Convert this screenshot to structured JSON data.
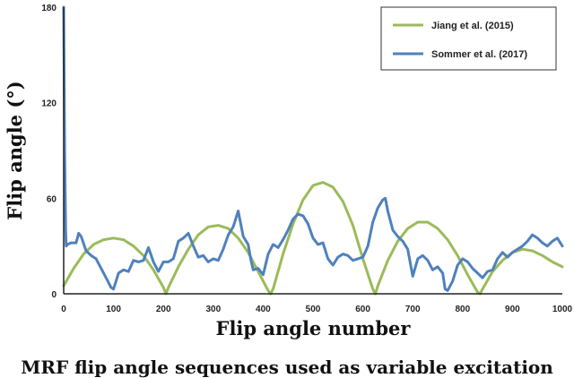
{
  "chart_data": {
    "type": "line",
    "xlabel": "Flip angle number",
    "ylabel": "Flip angle (°)",
    "xlim": [
      0,
      1000
    ],
    "ylim": [
      0,
      180
    ],
    "xticks": [
      0,
      100,
      200,
      300,
      400,
      500,
      600,
      700,
      800,
      900,
      1000
    ],
    "yticks": [
      0,
      60,
      120,
      180
    ],
    "grid": false,
    "legend_position": "top-right",
    "legend_box": true,
    "series": [
      {
        "name": "Jiang et al. (2015)",
        "color": "#9bbb59",
        "x": [
          0,
          20,
          40,
          60,
          80,
          100,
          120,
          140,
          160,
          180,
          200,
          205,
          210,
          230,
          250,
          270,
          290,
          310,
          330,
          350,
          370,
          390,
          410,
          415,
          420,
          440,
          460,
          480,
          500,
          520,
          540,
          560,
          580,
          600,
          620,
          625,
          630,
          650,
          670,
          690,
          710,
          730,
          750,
          770,
          790,
          810,
          830,
          835,
          840,
          860,
          880,
          900,
          920,
          940,
          960,
          980,
          1000
        ],
        "y": [
          5,
          16,
          25,
          31,
          34,
          35,
          34,
          30,
          24,
          15,
          4,
          0,
          4,
          17,
          28,
          37,
          42,
          43,
          41,
          35,
          26,
          14,
          2,
          0,
          3,
          25,
          44,
          59,
          68,
          70,
          67,
          58,
          43,
          22,
          3,
          0,
          5,
          21,
          33,
          41,
          45,
          45,
          41,
          34,
          24,
          12,
          1,
          0,
          3,
          14,
          21,
          26,
          28,
          27,
          24,
          20,
          17
        ]
      },
      {
        "name": "Sommer et al. (2017)",
        "color": "#4f81bd",
        "x": [
          0,
          2,
          4,
          5,
          8,
          15,
          25,
          30,
          35,
          45,
          55,
          65,
          75,
          85,
          95,
          100,
          110,
          120,
          130,
          140,
          150,
          160,
          170,
          180,
          190,
          200,
          210,
          220,
          230,
          240,
          250,
          260,
          270,
          280,
          290,
          300,
          310,
          320,
          330,
          340,
          350,
          360,
          370,
          375,
          380,
          390,
          400,
          410,
          420,
          430,
          440,
          450,
          460,
          470,
          480,
          490,
          500,
          510,
          520,
          530,
          540,
          550,
          560,
          570,
          580,
          590,
          600,
          610,
          620,
          630,
          640,
          645,
          650,
          660,
          670,
          680,
          690,
          700,
          710,
          720,
          730,
          740,
          750,
          760,
          765,
          770,
          780,
          790,
          800,
          810,
          820,
          830,
          840,
          850,
          860,
          870,
          880,
          890,
          900,
          910,
          920,
          930,
          940,
          950,
          960,
          970,
          980,
          990,
          1000
        ],
        "y": [
          180,
          90,
          40,
          30,
          31,
          32,
          32,
          38,
          36,
          27,
          24,
          22,
          16,
          10,
          4,
          3,
          13,
          15,
          14,
          21,
          20,
          21,
          29,
          20,
          14,
          20,
          20,
          22,
          33,
          35,
          38,
          30,
          23,
          24,
          20,
          22,
          21,
          28,
          37,
          42,
          52,
          36,
          31,
          22,
          15,
          16,
          12,
          25,
          31,
          29,
          34,
          40,
          47,
          50,
          49,
          44,
          35,
          31,
          32,
          22,
          18,
          23,
          25,
          24,
          21,
          22,
          23,
          30,
          45,
          54,
          59,
          60,
          52,
          40,
          36,
          33,
          28,
          11,
          22,
          24,
          21,
          15,
          17,
          13,
          3,
          2,
          8,
          18,
          22,
          20,
          16,
          13,
          10,
          14,
          15,
          22,
          26,
          23,
          26,
          28,
          30,
          33,
          37,
          35,
          32,
          30,
          33,
          35,
          30
        ]
      }
    ]
  },
  "caption": "MRF flip angle sequences used as variable excitation"
}
